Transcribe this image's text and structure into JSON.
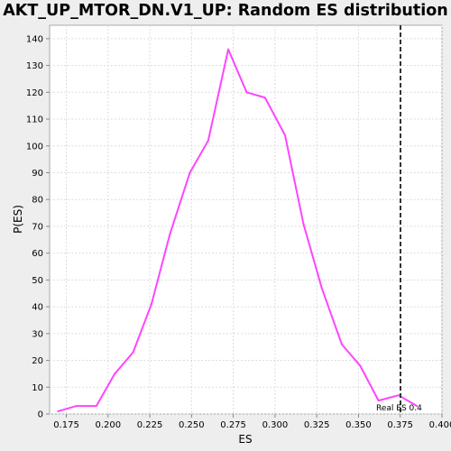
{
  "chart_data": {
    "type": "line",
    "title": "AKT_UP_MTOR_DN.V1_UP: Random ES distribution",
    "xlabel": "ES",
    "ylabel": "P(ES)",
    "xlim": [
      0.165,
      0.4
    ],
    "ylim": [
      0,
      145
    ],
    "x_ticks": [
      "0.175",
      "0.200",
      "0.225",
      "0.250",
      "0.275",
      "0.300",
      "0.325",
      "0.350",
      "0.375",
      "0.400"
    ],
    "y_ticks": [
      "0",
      "10",
      "20",
      "30",
      "40",
      "50",
      "60",
      "70",
      "80",
      "90",
      "100",
      "110",
      "120",
      "130",
      "140"
    ],
    "grid": true,
    "series": [
      {
        "color": "#ff44ff",
        "x": [
          0.17,
          0.181,
          0.193,
          0.204,
          0.215,
          0.226,
          0.237,
          0.249,
          0.26,
          0.272,
          0.283,
          0.294,
          0.306,
          0.317,
          0.328,
          0.34,
          0.351,
          0.362,
          0.374,
          0.385
        ],
        "y": [
          1,
          3,
          3,
          15,
          23,
          41,
          67,
          90,
          102,
          136,
          120,
          118,
          104,
          71,
          47,
          26,
          18,
          5,
          7,
          3
        ]
      }
    ],
    "marker": {
      "x": 0.4,
      "label": "Real ES 0.4",
      "color": "#333333"
    }
  }
}
